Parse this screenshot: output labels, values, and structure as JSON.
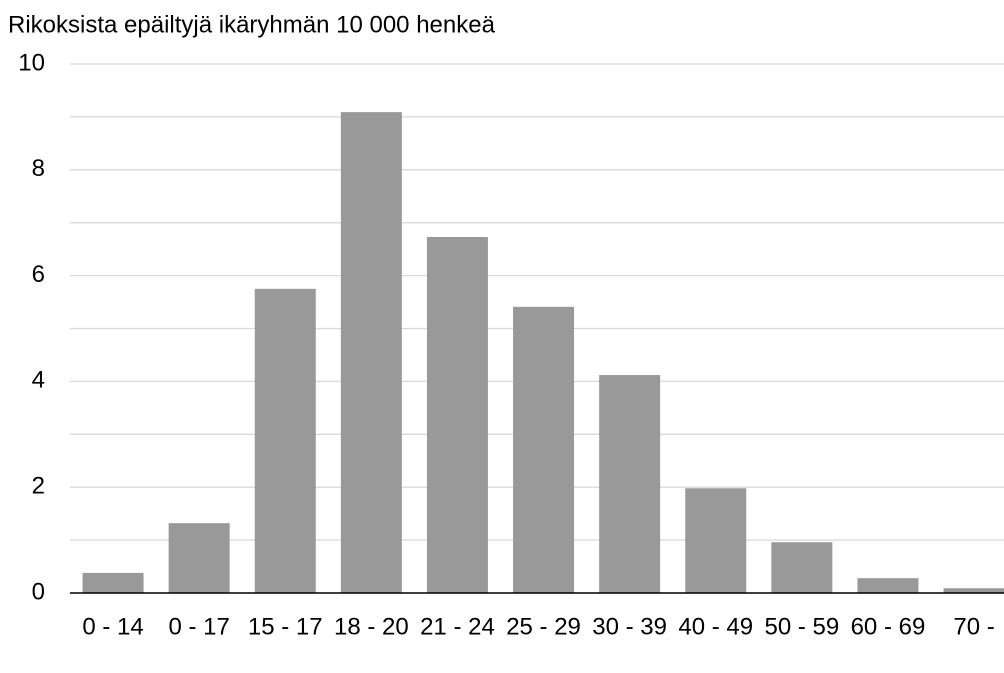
{
  "chart_data": {
    "type": "bar",
    "title": "Rikoksista epäiltyjä ikäryhmän 10 000 henkeä",
    "categories": [
      "0 - 14",
      "0 - 17",
      "15 - 17",
      "18 - 20",
      "21 - 24",
      "25 - 29",
      "30 - 39",
      "40 - 49",
      "50 - 59",
      "60 - 69",
      "70 -"
    ],
    "values": [
      0.38,
      1.32,
      5.75,
      9.09,
      6.73,
      5.41,
      4.12,
      1.98,
      0.96,
      0.28,
      0.09
    ],
    "color": "#999999",
    "ylim": [
      0,
      10
    ],
    "yticks": [
      0,
      2,
      4,
      6,
      8,
      10
    ],
    "minor_yticks": [
      1,
      3,
      5,
      7,
      9
    ],
    "grid": true
  }
}
